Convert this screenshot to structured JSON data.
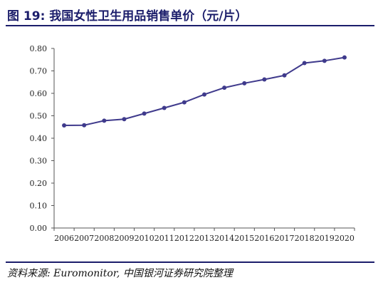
{
  "header": {
    "title": "图 19:   我国女性卫生用品销售单价（元/片）"
  },
  "footer": {
    "source": "资料来源: Euromonitor, 中国银河证券研究院整理"
  },
  "colors": {
    "line": "#3f3a8c",
    "accent": "#1b1d6b"
  },
  "chart_data": {
    "type": "line",
    "x": [
      "2006",
      "2007",
      "2008",
      "2009",
      "2010",
      "2011",
      "2012",
      "2013",
      "2014",
      "2015",
      "2016",
      "2017",
      "2018",
      "2019",
      "2020"
    ],
    "series": [
      {
        "values": [
          0.457,
          0.458,
          0.478,
          0.485,
          0.51,
          0.535,
          0.56,
          0.595,
          0.625,
          0.645,
          0.662,
          0.68,
          0.735,
          0.745,
          0.76
        ]
      }
    ],
    "yticks": [
      "0.00",
      "0.10",
      "0.20",
      "0.30",
      "0.40",
      "0.50",
      "0.60",
      "0.70",
      "0.80"
    ],
    "ylim": [
      0,
      0.8
    ],
    "grid": false,
    "legend": "none"
  }
}
